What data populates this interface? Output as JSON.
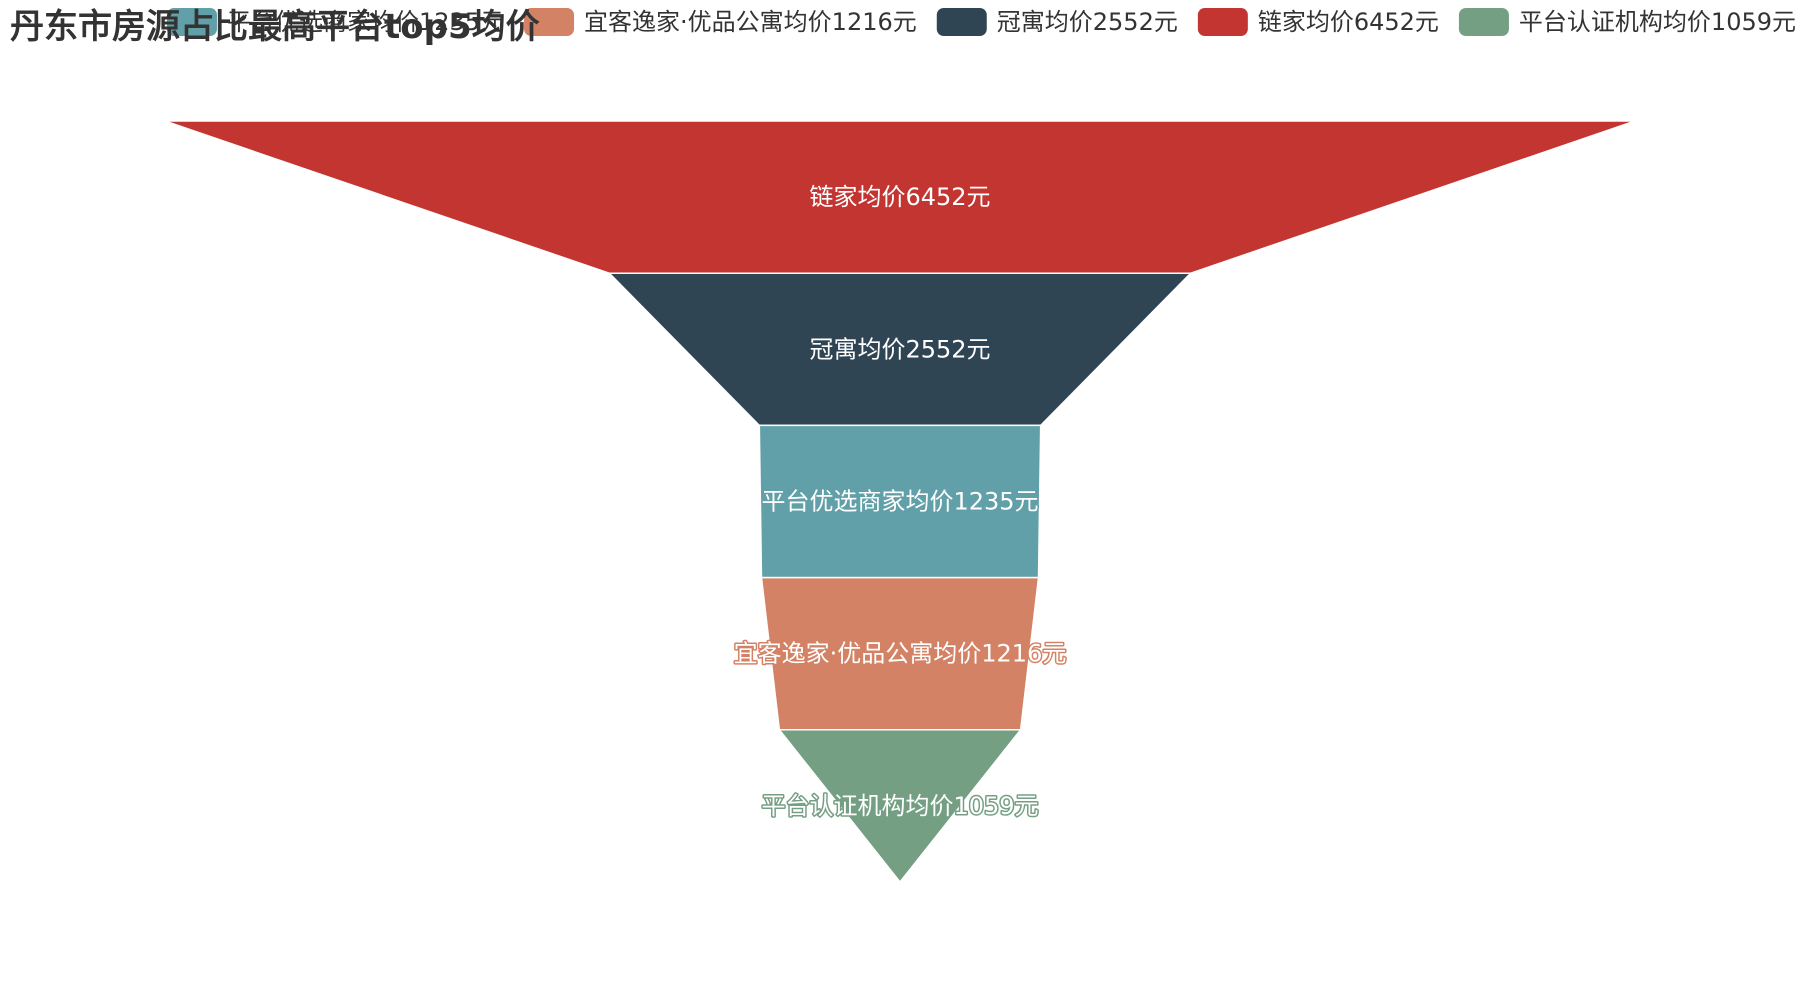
{
  "chart_data": {
    "type": "funnel",
    "title": "丹东市房源占比最高平台top5均价",
    "legend": [
      {
        "label": "平台优选商家均价1235元",
        "color": "#61a0a8"
      },
      {
        "label": "宜客逸家·优品公寓均价1216元",
        "color": "#d48265"
      },
      {
        "label": "冠寓均价2552元",
        "color": "#2f4554"
      },
      {
        "label": "链家均价6452元",
        "color": "#c23531"
      },
      {
        "label": "平台认证机构均价1059元",
        "color": "#749f83"
      }
    ],
    "series": [
      {
        "name": "链家均价6452元",
        "value": 6452,
        "color": "#c23531"
      },
      {
        "name": "冠寓均价2552元",
        "value": 2552,
        "color": "#2f4554"
      },
      {
        "name": "平台优选商家均价1235元",
        "value": 1235,
        "color": "#61a0a8"
      },
      {
        "name": "宜客逸家·优品公寓均价1216元",
        "value": 1216,
        "color": "#d48265"
      },
      {
        "name": "平台认证机构均价1059元",
        "value": 1059,
        "color": "#749f83"
      }
    ],
    "sort": "descending",
    "legend_position": "top",
    "label_position": "inside"
  }
}
